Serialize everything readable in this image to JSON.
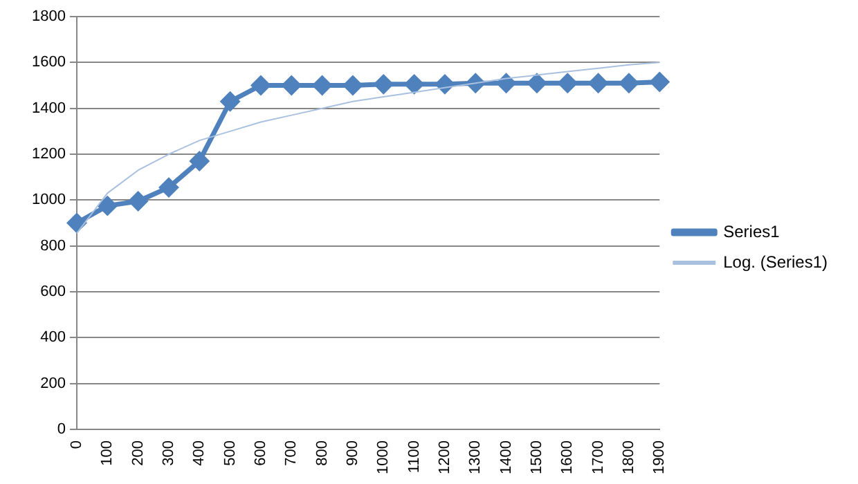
{
  "chart_data": {
    "type": "line",
    "categories": [
      "0",
      "100",
      "200",
      "300",
      "400",
      "500",
      "600",
      "700",
      "800",
      "900",
      "1000",
      "1100",
      "1200",
      "1300",
      "1400",
      "1500",
      "1600",
      "1700",
      "1800",
      "1900"
    ],
    "series": [
      {
        "name": "Series1",
        "color": "#4f81bd",
        "marker": "diamond",
        "values": [
          900,
          975,
          995,
          1055,
          1170,
          1430,
          1500,
          1500,
          1500,
          1500,
          1505,
          1505,
          1505,
          1510,
          1510,
          1510,
          1510,
          1510,
          1510,
          1515
        ]
      },
      {
        "name": "Log. (Series1)",
        "color": "#a9c0de",
        "marker": "none",
        "values": [
          855,
          1030,
          1130,
          1200,
          1260,
          1300,
          1340,
          1370,
          1400,
          1430,
          1450,
          1470,
          1490,
          1510,
          1530,
          1545,
          1560,
          1575,
          1590,
          1600
        ]
      }
    ],
    "ylim": [
      0,
      1800
    ],
    "yticks": [
      0,
      200,
      400,
      600,
      800,
      1000,
      1200,
      1400,
      1600,
      1800
    ],
    "grid": "y",
    "legend": "right"
  }
}
